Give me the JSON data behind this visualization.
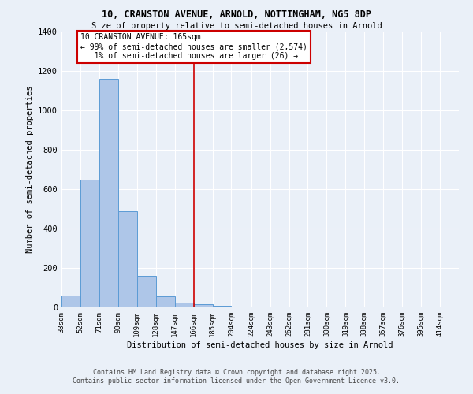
{
  "title1": "10, CRANSTON AVENUE, ARNOLD, NOTTINGHAM, NG5 8DP",
  "title2": "Size of property relative to semi-detached houses in Arnold",
  "xlabel": "Distribution of semi-detached houses by size in Arnold",
  "ylabel": "Number of semi-detached properties",
  "bin_labels": [
    "33sqm",
    "52sqm",
    "71sqm",
    "90sqm",
    "109sqm",
    "128sqm",
    "147sqm",
    "166sqm",
    "185sqm",
    "204sqm",
    "224sqm",
    "243sqm",
    "262sqm",
    "281sqm",
    "300sqm",
    "319sqm",
    "338sqm",
    "357sqm",
    "376sqm",
    "395sqm",
    "414sqm"
  ],
  "bin_edges": [
    33,
    52,
    71,
    90,
    109,
    128,
    147,
    166,
    185,
    204,
    224,
    243,
    262,
    281,
    300,
    319,
    338,
    357,
    376,
    395,
    414
  ],
  "bar_heights": [
    60,
    650,
    1160,
    490,
    160,
    55,
    25,
    15,
    10,
    0,
    0,
    0,
    0,
    0,
    0,
    0,
    0,
    0,
    0,
    0,
    0
  ],
  "bar_color": "#aec6e8",
  "bar_edge_color": "#5b9bd5",
  "property_line_x": 166,
  "annotation_line1": "10 CRANSTON AVENUE: 165sqm",
  "annotation_line2": "← 99% of semi-detached houses are smaller (2,574)",
  "annotation_line3": "   1% of semi-detached houses are larger (26) →",
  "annotation_box_color": "#ffffff",
  "annotation_edge_color": "#cc0000",
  "vline_color": "#cc0000",
  "ylim": [
    0,
    1400
  ],
  "yticks": [
    0,
    200,
    400,
    600,
    800,
    1000,
    1200,
    1400
  ],
  "background_color": "#eaf0f8",
  "grid_color": "#ffffff",
  "footer_line1": "Contains HM Land Registry data © Crown copyright and database right 2025.",
  "footer_line2": "Contains public sector information licensed under the Open Government Licence v3.0."
}
